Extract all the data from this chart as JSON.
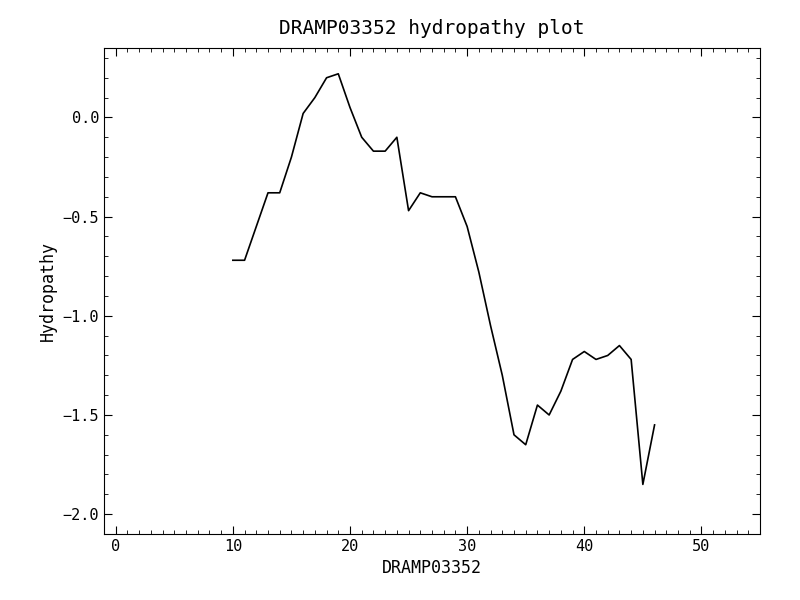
{
  "title": "DRAMP03352 hydropathy plot",
  "xlabel": "DRAMP03352",
  "ylabel": "Hydropathy",
  "xlim": [
    -1,
    55
  ],
  "ylim": [
    -2.1,
    0.35
  ],
  "xticks": [
    0,
    10,
    20,
    30,
    40,
    50
  ],
  "yticks": [
    -2.0,
    -1.5,
    -1.0,
    -0.5,
    0.0
  ],
  "line_color": "#000000",
  "line_width": 1.2,
  "background_color": "#ffffff",
  "title_fontsize": 14,
  "label_fontsize": 12,
  "x": [
    10,
    11,
    12,
    13,
    14,
    15,
    16,
    17,
    18,
    19,
    20,
    21,
    22,
    23,
    24,
    25,
    26,
    27,
    28,
    29,
    30,
    31,
    32,
    33,
    34,
    35,
    36,
    37,
    38,
    39,
    40,
    41,
    42,
    43,
    44,
    45,
    46
  ],
  "y": [
    -0.72,
    -0.72,
    -0.55,
    -0.38,
    -0.38,
    -0.2,
    0.02,
    0.1,
    0.2,
    0.22,
    0.05,
    -0.1,
    -0.17,
    -0.17,
    -0.1,
    -0.47,
    -0.38,
    -0.4,
    -0.4,
    -0.4,
    -0.55,
    -0.78,
    -1.05,
    -1.3,
    -1.6,
    -1.65,
    -1.45,
    -1.5,
    -1.38,
    -1.22,
    -1.18,
    -1.22,
    -1.2,
    -1.15,
    -1.22,
    -1.85,
    -1.55
  ]
}
